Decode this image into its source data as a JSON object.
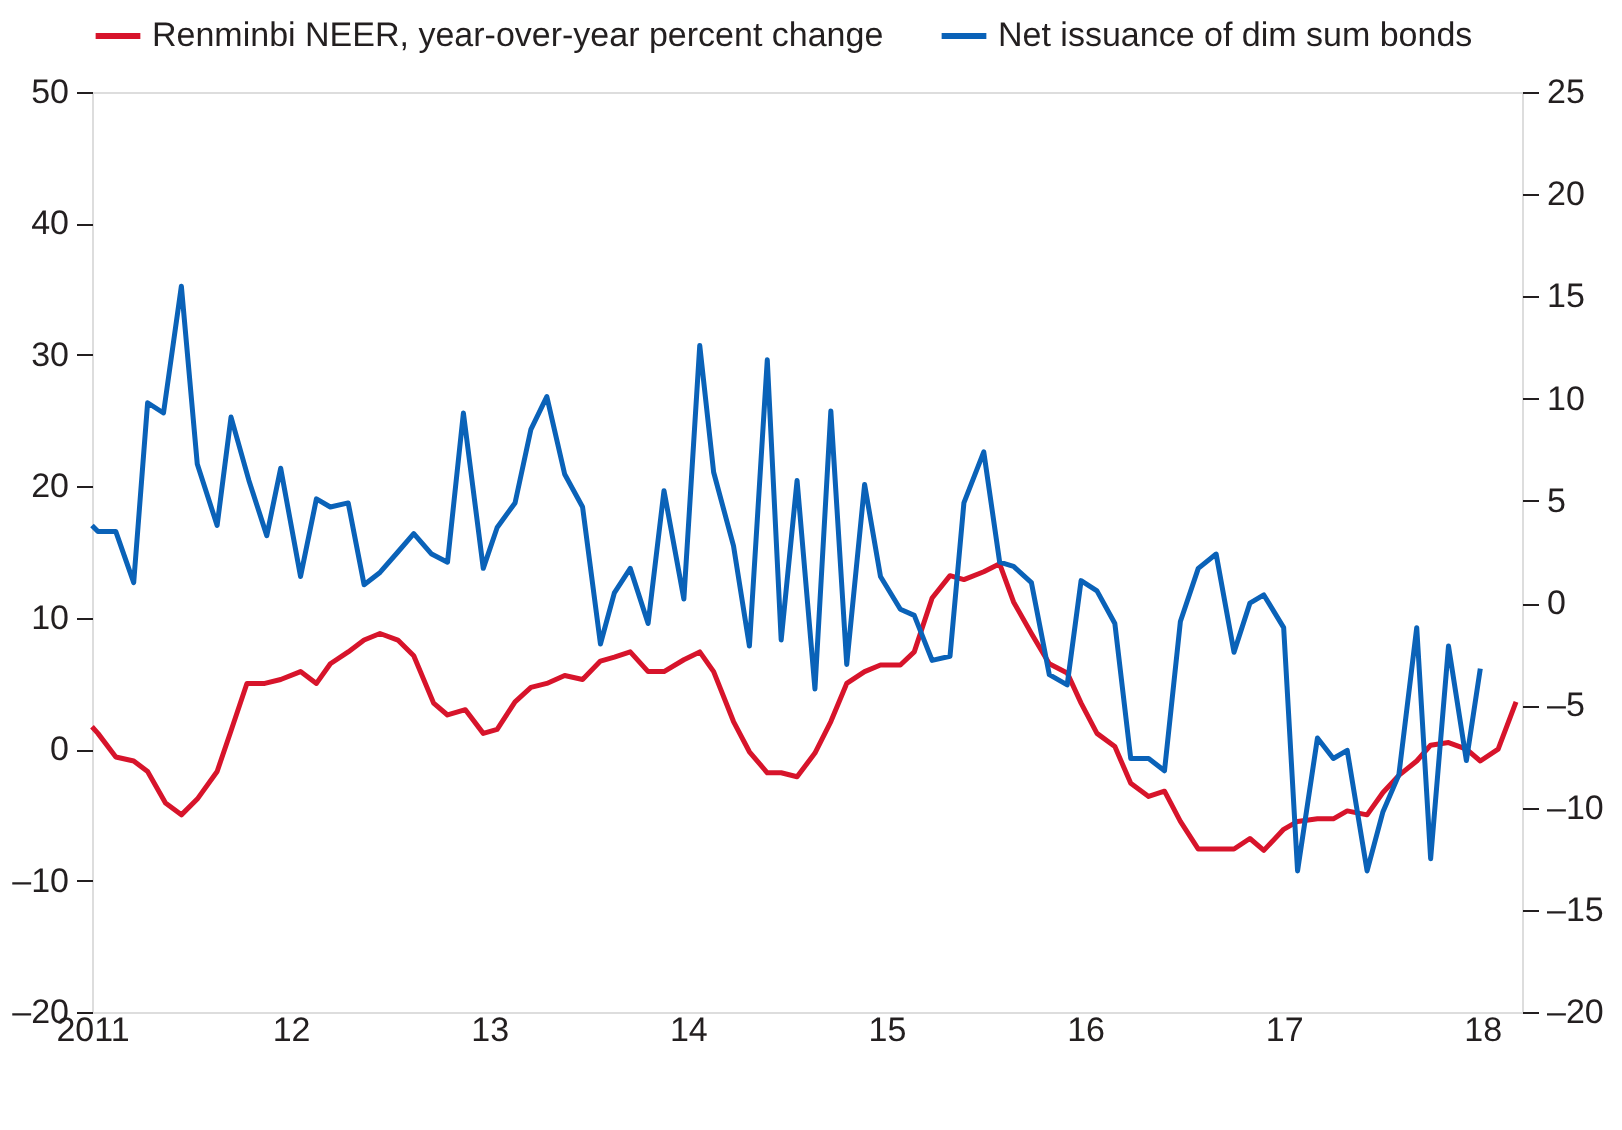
{
  "chart_data": {
    "type": "line",
    "legend": "top",
    "grid": false,
    "line_style": "solid",
    "marker": "none",
    "xlim": [
      2011,
      2018.2
    ],
    "xticks": [
      {
        "value": 2011,
        "label": "2011"
      },
      {
        "value": 2012,
        "label": "12"
      },
      {
        "value": 2013,
        "label": "13"
      },
      {
        "value": 2014,
        "label": "14"
      },
      {
        "value": 2015,
        "label": "15"
      },
      {
        "value": 2016,
        "label": "16"
      },
      {
        "value": 2017,
        "label": "17"
      },
      {
        "value": 2018,
        "label": "18"
      }
    ],
    "ylim": [
      -20,
      50
    ],
    "yticks": [
      {
        "value": -20,
        "label": "–20"
      },
      {
        "value": -10,
        "label": "–10"
      },
      0,
      10,
      20,
      30,
      40,
      50
    ],
    "y2lim": [
      -20,
      25
    ],
    "y2ticks": [
      {
        "value": -20,
        "label": "–20"
      },
      {
        "value": -15,
        "label": "–15"
      },
      {
        "value": -10,
        "label": "–10"
      },
      {
        "value": -5,
        "label": "–5"
      },
      0,
      5,
      10,
      15,
      20,
      25
    ],
    "series": [
      {
        "name": "Renminbi NEER, year-over-year percent change",
        "color": "#d7142b",
        "x": [
          2011.0,
          2011.03,
          2011.12,
          2011.21,
          2011.28,
          2011.37,
          2011.45,
          2011.53,
          2011.63,
          2011.7,
          2011.78,
          2011.87,
          2011.95,
          2012.05,
          2012.13,
          2012.2,
          2012.29,
          2012.37,
          2012.45,
          2012.54,
          2012.62,
          2012.72,
          2012.79,
          2012.88,
          2012.97,
          2013.04,
          2013.13,
          2013.21,
          2013.29,
          2013.38,
          2013.47,
          2013.56,
          2013.63,
          2013.71,
          2013.8,
          2013.88,
          2013.98,
          2014.06,
          2014.13,
          2014.23,
          2014.31,
          2014.4,
          2014.47,
          2014.55,
          2014.64,
          2014.72,
          2014.8,
          2014.89,
          2014.97,
          2015.07,
          2015.14,
          2015.23,
          2015.32,
          2015.39,
          2015.49,
          2015.57,
          2015.64,
          2015.73,
          2015.82,
          2015.91,
          2015.98,
          2016.06,
          2016.15,
          2016.23,
          2016.32,
          2016.4,
          2016.48,
          2016.57,
          2016.66,
          2016.75,
          2016.83,
          2016.9,
          2017.0,
          2017.07,
          2017.17,
          2017.25,
          2017.32,
          2017.42,
          2017.5,
          2017.58,
          2017.67,
          2017.74,
          2017.83,
          2017.92,
          2017.99,
          2018.08,
          2018.17
        ],
        "values": [
          1.7,
          1.2,
          -0.6,
          -0.9,
          -1.7,
          -4.1,
          -5.0,
          -3.8,
          -1.7,
          1.4,
          5.0,
          5.0,
          5.3,
          5.9,
          5.0,
          6.5,
          7.4,
          8.3,
          8.8,
          8.3,
          7.1,
          3.5,
          2.6,
          3.0,
          1.2,
          1.5,
          3.6,
          4.7,
          5.0,
          5.6,
          5.3,
          6.7,
          7.0,
          7.4,
          5.9,
          5.9,
          6.8,
          7.4,
          5.9,
          2.1,
          -0.2,
          -1.8,
          -1.8,
          -2.1,
          -0.3,
          2.1,
          5.0,
          5.9,
          6.4,
          6.4,
          7.4,
          11.5,
          13.2,
          12.9,
          13.5,
          14.1,
          11.2,
          8.8,
          6.5,
          5.8,
          3.5,
          1.2,
          0.2,
          -2.6,
          -3.6,
          -3.2,
          -5.5,
          -7.6,
          -7.6,
          -7.6,
          -6.8,
          -7.7,
          -6.1,
          -5.5,
          -5.3,
          -5.3,
          -4.7,
          -5.0,
          -3.3,
          -2.0,
          -0.9,
          0.3,
          0.5,
          0.0,
          -0.9,
          0.0,
          3.6
        ]
      },
      {
        "name": "Net issuance of dim sum bonds",
        "color": "#0a62b8",
        "axis": "y2",
        "x": [
          2011.0,
          2011.03,
          2011.12,
          2011.21,
          2011.28,
          2011.36,
          2011.45,
          2011.53,
          2011.63,
          2011.7,
          2011.79,
          2011.88,
          2011.95,
          2012.05,
          2012.13,
          2012.2,
          2012.29,
          2012.37,
          2012.45,
          2012.54,
          2012.62,
          2012.71,
          2012.79,
          2012.87,
          2012.97,
          2013.04,
          2013.13,
          2013.21,
          2013.29,
          2013.38,
          2013.47,
          2013.56,
          2013.63,
          2013.71,
          2013.8,
          2013.88,
          2013.98,
          2014.06,
          2014.13,
          2014.23,
          2014.31,
          2014.4,
          2014.47,
          2014.55,
          2014.64,
          2014.72,
          2014.8,
          2014.89,
          2014.97,
          2015.07,
          2015.14,
          2015.23,
          2015.32,
          2015.39,
          2015.49,
          2015.57,
          2015.64,
          2015.73,
          2015.82,
          2015.91,
          2015.98,
          2016.06,
          2016.15,
          2016.23,
          2016.32,
          2016.4,
          2016.48,
          2016.57,
          2016.66,
          2016.75,
          2016.83,
          2016.9,
          2017.0,
          2017.07,
          2017.17,
          2017.25,
          2017.32,
          2017.42,
          2017.5,
          2017.58,
          2017.67,
          2017.74,
          2017.83,
          2017.92,
          2017.99
        ],
        "values": [
          3.8,
          3.5,
          3.5,
          1.0,
          9.8,
          9.3,
          15.5,
          6.8,
          3.8,
          9.1,
          6.0,
          3.3,
          6.6,
          1.3,
          5.1,
          4.7,
          4.9,
          0.9,
          1.5,
          2.5,
          3.4,
          2.4,
          2.0,
          9.3,
          1.7,
          3.7,
          4.9,
          8.5,
          10.1,
          6.3,
          4.7,
          -2.0,
          0.5,
          1.7,
          -1.0,
          5.5,
          0.2,
          12.6,
          6.4,
          2.8,
          -2.1,
          11.9,
          -1.8,
          6.0,
          -4.2,
          9.4,
          -3.0,
          5.8,
          1.3,
          -0.3,
          -0.6,
          -2.8,
          -2.6,
          4.9,
          7.4,
          2.0,
          1.8,
          1.0,
          -3.5,
          -4.0,
          1.1,
          0.6,
          -1.0,
          -7.6,
          -7.6,
          -8.2,
          -0.9,
          1.7,
          2.4,
          -2.4,
          0.0,
          0.4,
          -1.2,
          -13.1,
          -6.6,
          -7.6,
          -7.2,
          -13.1,
          -10.2,
          -8.4,
          -1.2,
          -12.5,
          -2.1,
          -7.7,
          -3.2
        ]
      }
    ]
  }
}
